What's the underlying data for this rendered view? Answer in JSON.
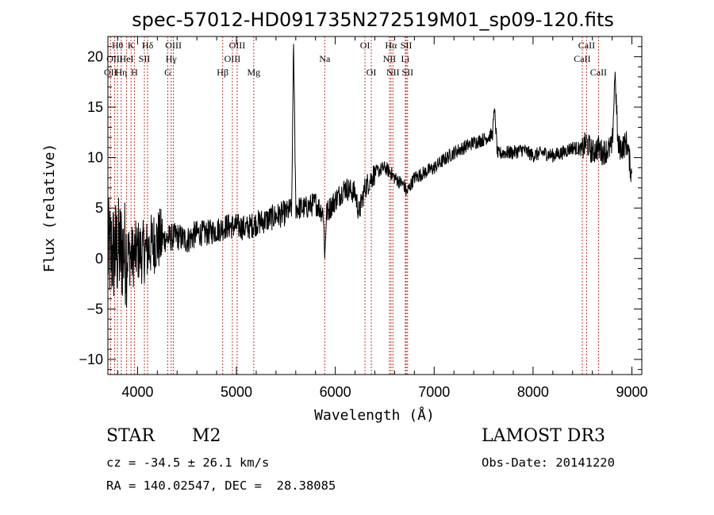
{
  "chart_data": {
    "type": "line",
    "title": "spec-57012-HD091735N272519M01_sp09-120.fits",
    "xlabel": "Wavelength (Å)",
    "ylabel": "Flux (relative)",
    "xlim": [
      3700,
      9100
    ],
    "ylim": [
      -11.5,
      22
    ],
    "xticks": [
      4000,
      5000,
      6000,
      7000,
      8000,
      9000
    ],
    "yticks": [
      -10,
      -5,
      0,
      5,
      10,
      15,
      20
    ],
    "series": [
      {
        "name": "flux",
        "x": [
          3700,
          3750,
          3800,
          3850,
          3900,
          3950,
          4000,
          4050,
          4100,
          4150,
          4200,
          4300,
          4400,
          4500,
          4600,
          4700,
          4800,
          4900,
          5000,
          5100,
          5200,
          5300,
          5400,
          5500,
          5560,
          5577,
          5600,
          5700,
          5800,
          5880,
          5893,
          5910,
          6000,
          6100,
          6200,
          6240,
          6300,
          6400,
          6500,
          6560,
          6600,
          6700,
          6720,
          6800,
          6900,
          7000,
          7100,
          7200,
          7300,
          7400,
          7500,
          7590,
          7610,
          7640,
          7700,
          7800,
          7900,
          8000,
          8100,
          8200,
          8300,
          8400,
          8500,
          8540,
          8600,
          8660,
          8700,
          8800,
          8830,
          8860,
          8900,
          8950,
          9000
        ],
        "y": [
          0.5,
          0.5,
          0.8,
          0.8,
          0.5,
          0.2,
          0.8,
          0.6,
          0.8,
          1.5,
          1.8,
          2.0,
          2.2,
          1.8,
          2.5,
          2.5,
          2.8,
          3.2,
          3.2,
          3.0,
          3.5,
          3.8,
          4.2,
          4.5,
          5.0,
          22.0,
          5.0,
          5.0,
          5.5,
          4.5,
          0.0,
          4.5,
          5.8,
          7.0,
          6.5,
          4.5,
          7.0,
          8.5,
          9.0,
          8.5,
          8.0,
          7.2,
          6.5,
          8.0,
          8.5,
          9.0,
          9.8,
          10.5,
          11.0,
          11.5,
          11.8,
          12.3,
          15.0,
          10.3,
          10.5,
          10.5,
          10.8,
          10.2,
          10.5,
          10.2,
          10.5,
          11.0,
          10.8,
          11.5,
          10.5,
          11.0,
          10.5,
          11.0,
          18.5,
          11.0,
          11.0,
          11.5,
          8.0
        ]
      }
    ],
    "spectral_lines": [
      {
        "name": "Hθ",
        "wl": 3797,
        "row": 0
      },
      {
        "name": "OII",
        "wl": 3727,
        "row": 2
      },
      {
        "name": "Hη",
        "wl": 3835,
        "row": 2
      },
      {
        "name": "OIII",
        "wl": 3769,
        "row": 1
      },
      {
        "name": "HeI",
        "wl": 3889,
        "row": 1
      },
      {
        "name": "K",
        "wl": 3934,
        "row": 0
      },
      {
        "name": "H",
        "wl": 3968,
        "row": 2
      },
      {
        "name": "SII",
        "wl": 4069,
        "row": 1
      },
      {
        "name": "Hδ",
        "wl": 4102,
        "row": 0
      },
      {
        "name": "OIII",
        "wl": 4363,
        "row": 0
      },
      {
        "name": "Hγ",
        "wl": 4340,
        "row": 1
      },
      {
        "name": "G",
        "wl": 4305,
        "row": 2
      },
      {
        "name": "Hβ",
        "wl": 4861,
        "row": 2
      },
      {
        "name": "OIII",
        "wl": 5007,
        "row": 0
      },
      {
        "name": "OIII",
        "wl": 4959,
        "row": 1
      },
      {
        "name": "Mg",
        "wl": 5175,
        "row": 2
      },
      {
        "name": "Na",
        "wl": 5893,
        "row": 1
      },
      {
        "name": "OI",
        "wl": 6300,
        "row": 0
      },
      {
        "name": "OI",
        "wl": 6364,
        "row": 2
      },
      {
        "name": "Hα",
        "wl": 6563,
        "row": 0
      },
      {
        "name": "NII",
        "wl": 6548,
        "row": 1
      },
      {
        "name": "NII",
        "wl": 6583,
        "row": 2
      },
      {
        "name": "SII",
        "wl": 6717,
        "row": 0
      },
      {
        "name": "Li",
        "wl": 6708,
        "row": 1
      },
      {
        "name": "SII",
        "wl": 6731,
        "row": 2
      },
      {
        "name": "CaII",
        "wl": 8542,
        "row": 0
      },
      {
        "name": "CaII",
        "wl": 8498,
        "row": 1
      },
      {
        "name": "CaII",
        "wl": 8662,
        "row": 2
      }
    ],
    "line_color": "#000000",
    "marker_color": "#c0392b"
  },
  "info": {
    "object_class": "STAR",
    "subclass": "M2",
    "survey": "LAMOST DR3",
    "redshift": "cz = -34.5 ± 26.1 km/s",
    "obs_date": "Obs-Date: 20141220",
    "coords": "RA = 140.02547, DEC =  28.38085"
  }
}
